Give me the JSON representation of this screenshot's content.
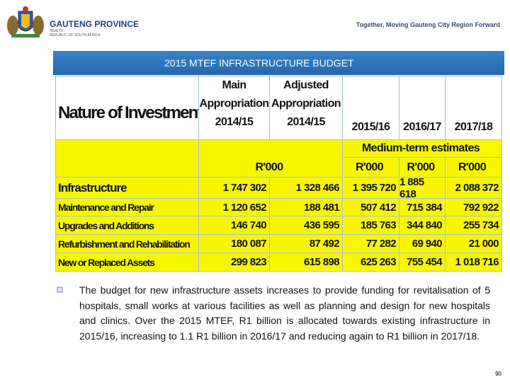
{
  "header": {
    "org": "GAUTENG PROVINCE",
    "dept": "HEALTH",
    "country": "REPUBLIC OF SOUTH AFRICA",
    "tagline": "Together, Moving Gauteng City Region Forward"
  },
  "title": "2015 MTEF INFRASTRUCTURE BUDGET",
  "table": {
    "label_header": "Nature of Investment",
    "columns": [
      [
        "Main",
        "Appropriation",
        "2014/15"
      ],
      [
        "Adjusted",
        "Appropriation",
        "2014/15"
      ],
      [
        "2015/16"
      ],
      [
        "2016/17"
      ],
      [
        "2017/18"
      ]
    ],
    "units_merged": "R'000",
    "medium_term": "Medium-term estimates",
    "units": [
      "R'000",
      "R'000",
      "R'000"
    ],
    "rows": [
      {
        "label": "Infrastructure",
        "values": [
          "1 747 302",
          "1 328 466",
          "1 395 720",
          "1 885 618",
          "2 088 372"
        ]
      },
      {
        "label": "Maintenance and Repair",
        "values": [
          "1 120 652",
          "188 481",
          "507 412",
          "715 384",
          "792 922"
        ]
      },
      {
        "label": "Upgrades and Additions",
        "values": [
          "146 740",
          "436 595",
          "185 763",
          "344 840",
          "255 734"
        ]
      },
      {
        "label": "Refurbishment and Rehabilitation",
        "values": [
          "180 087",
          "87 492",
          "77 282",
          "69 940",
          "21 000"
        ]
      },
      {
        "label": "New or Replaced Assets",
        "values": [
          "299 823",
          "615 898",
          "625 263",
          "755 454",
          "1 018 716"
        ]
      }
    ]
  },
  "bullet": "The budget for new infrastructure assets increases to provide funding for revitalisation of 5 hospitals, small works at various facilities as well as planning and design for new hospitals and clinics.  Over the 2015 MTEF, R1 billion is allocated towards existing infrastructure in 2015/16, increasing to 1.1 R1 billion in 2016/17 and reducing again to R1 billion in 2017/18.",
  "page_number": "90"
}
